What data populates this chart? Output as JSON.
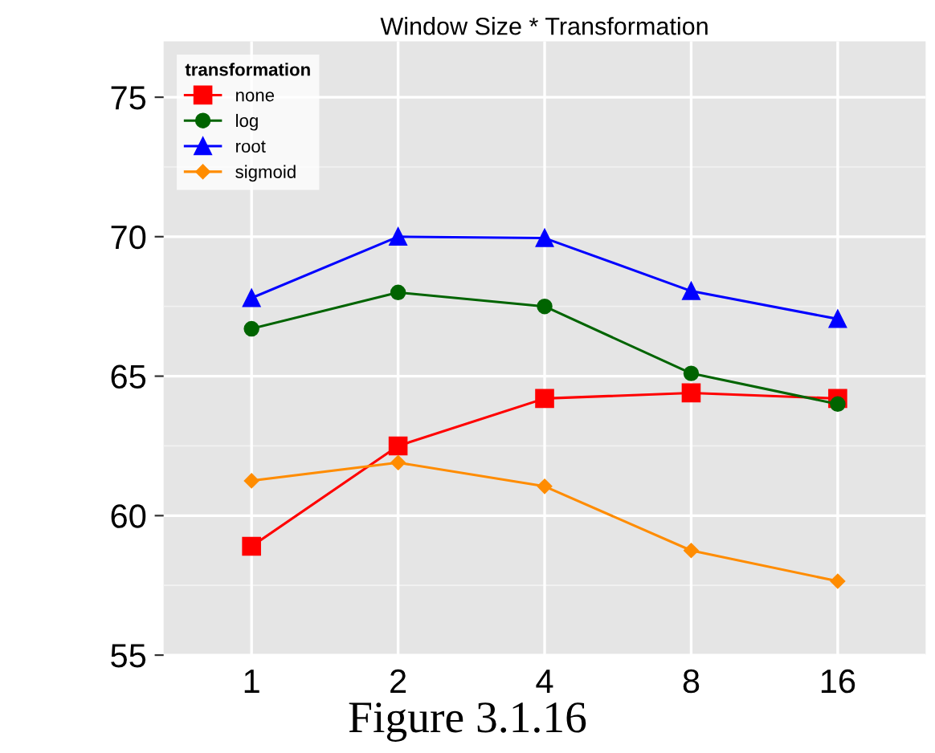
{
  "chart_data": {
    "type": "line",
    "title": "Window Size * Transformation",
    "categories": [
      "1",
      "2",
      "4",
      "8",
      "16"
    ],
    "series": [
      {
        "name": "none",
        "color": "#ff0000",
        "marker": "square",
        "values": [
          58.9,
          62.5,
          64.2,
          64.4,
          64.2
        ]
      },
      {
        "name": "log",
        "color": "#006400",
        "marker": "circle",
        "values": [
          66.7,
          68.0,
          67.5,
          65.1,
          64.0
        ]
      },
      {
        "name": "root",
        "color": "#0000ff",
        "marker": "triangle",
        "values": [
          67.8,
          70.0,
          69.95,
          68.05,
          67.05
        ]
      },
      {
        "name": "sigmoid",
        "color": "#ff8c00",
        "marker": "diamond",
        "values": [
          61.25,
          61.9,
          61.05,
          58.75,
          57.65
        ]
      }
    ],
    "ylim": [
      55,
      77
    ],
    "yticks": [
      55,
      60,
      65,
      70,
      75
    ],
    "grid": true,
    "legend": "top left",
    "legend_title": "transformation",
    "line_style": "solid",
    "annotations": [
      "Figure 3.1.16"
    ]
  }
}
